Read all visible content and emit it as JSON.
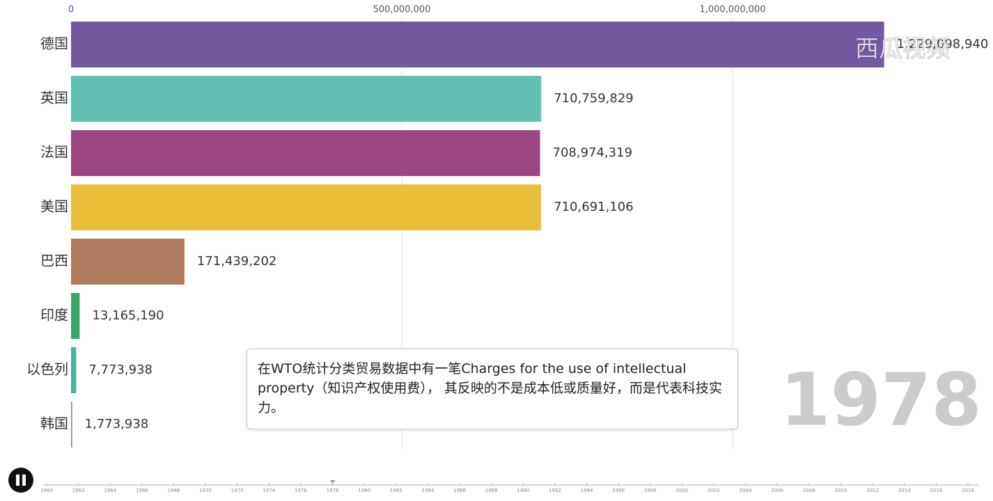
{
  "chart_data": {
    "type": "bar",
    "orientation": "horizontal",
    "categories": [
      "德国",
      "英国",
      "法国",
      "美国",
      "巴西",
      "印度",
      "以色列",
      "韩国"
    ],
    "values": [
      1229098940,
      710759829,
      708974319,
      710691106,
      171439202,
      13165190,
      7773938,
      1773938
    ],
    "value_labels": [
      "1,229,098,940",
      "710,759,829",
      "708,974,319",
      "710,691,106",
      "171,439,202",
      "13,165,190",
      "7,773,938",
      "1,773,938"
    ],
    "colors": [
      "#7559a0",
      "#62c0b2",
      "#9c467f",
      "#e9be38",
      "#b07a5e",
      "#3aa86a",
      "#4fae9e",
      "#8a8a8a"
    ],
    "xlim": [
      0,
      1300000000
    ],
    "xticks": [
      0,
      {
        "value": 500000000,
        "label": "500,000,000"
      },
      {
        "value": 1000000000,
        "label": "1,000,000,000"
      }
    ],
    "grid": true,
    "year": 1978,
    "annotation": "在WTO统计分类贸易数据中有一笔Charges for the use of intellectual property（知识产权使用费）， 其反映的不是成本低或质量好，而是代表科技实力。",
    "timeline": {
      "years": [
        1960,
        1962,
        1964,
        1966,
        1968,
        1970,
        1972,
        1974,
        1976,
        1978,
        1980,
        1982,
        1984,
        1986,
        1988,
        1990,
        1992,
        1994,
        1996,
        1998,
        2000,
        2002,
        2004,
        2006,
        2008,
        2010,
        2012,
        2014,
        2016,
        2018
      ],
      "current": 1978
    },
    "watermark": "西瓜视频"
  }
}
